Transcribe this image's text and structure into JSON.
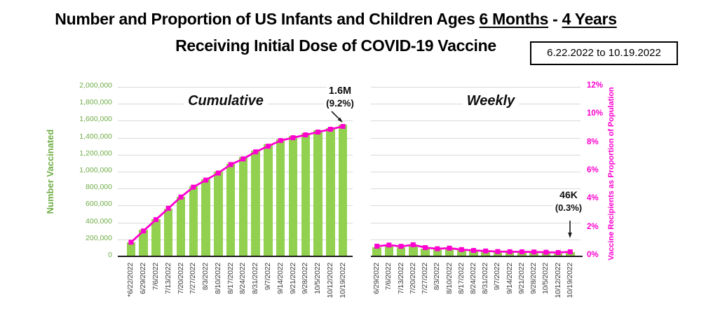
{
  "header": {
    "title_line1": {
      "prefix": "Number and Proportion of US Infants and Children Ages ",
      "underlined_1": "6 Months",
      "separator": " - ",
      "underlined_2": "4 Years"
    },
    "title_line2": "Receiving Initial Dose of COVID-19 Vaccine",
    "date_range": "6.22.2022 to 10.19.2022"
  },
  "colors": {
    "bar_green": "#92D050",
    "axis_green": "#70AD47",
    "magenta": "#FF00CE",
    "gridline": "#D9D9D9",
    "axis_line": "#1A1A1A",
    "label_gray": "#3F3F3F"
  },
  "left_axis": {
    "title": "Number Vaccinated",
    "min": 0,
    "max": 2000000,
    "step": 200000,
    "tick_labels": [
      "0",
      "200,000",
      "400,000",
      "600,000",
      "800,000",
      "1,000,000",
      "1,200,000",
      "1,400,000",
      "1,600,000",
      "1,800,000",
      "2,000,000"
    ]
  },
  "right_axis": {
    "title": "Vaccine Recipients as Proportion of Population",
    "min": 0,
    "max": 12,
    "step": 2,
    "tick_labels": [
      "0%",
      "2%",
      "4%",
      "6%",
      "8%",
      "10%",
      "12%"
    ]
  },
  "chart_data": [
    {
      "id": "cumulative",
      "type": "bar+line",
      "title": "Cumulative",
      "categories": [
        "*6/22/2022",
        "6/29/2022",
        "7/6/2022",
        "7/13/2022",
        "7/20/2022",
        "7/27/2022",
        "8/3/2022",
        "8/10/2022",
        "8/17/2022",
        "8/24/2022",
        "8/31/2022",
        "9/7/2022",
        "9/14/2022",
        "9/21/2022",
        "9/28/2022",
        "10/5/2022",
        "10/12/2022",
        "10/19/2022"
      ],
      "series": [
        {
          "name": "Number Vaccinated",
          "type": "bar",
          "axis": "left",
          "values": [
            165000,
            310000,
            435000,
            565000,
            700000,
            830000,
            905000,
            1000000,
            1090000,
            1170000,
            1245000,
            1320000,
            1380000,
            1420000,
            1455000,
            1485000,
            1515000,
            1550000
          ]
        },
        {
          "name": "Vaccine Recipients as Proportion of Population",
          "type": "line",
          "axis": "right",
          "values": [
            1.0,
            1.8,
            2.6,
            3.4,
            4.2,
            4.9,
            5.4,
            5.9,
            6.5,
            6.9,
            7.4,
            7.8,
            8.2,
            8.4,
            8.6,
            8.8,
            9.0,
            9.2
          ]
        }
      ],
      "annotation": {
        "line1": "1.6M",
        "line2": "(9.2%)"
      }
    },
    {
      "id": "weekly",
      "type": "bar+line",
      "title": "Weekly",
      "categories": [
        "6/29/2022",
        "7/6/2022",
        "7/13/2022",
        "7/20/2022",
        "7/27/2022",
        "8/3/2022",
        "8/10/2022",
        "8/17/2022",
        "8/24/2022",
        "8/31/2022",
        "9/7/2022",
        "9/14/2022",
        "9/21/2022",
        "9/28/2022",
        "10/5/2022",
        "10/12/2022",
        "10/19/2022"
      ],
      "series": [
        {
          "name": "Number Vaccinated",
          "type": "bar",
          "axis": "left",
          "values": [
            110000,
            125000,
            108000,
            128000,
            95000,
            82000,
            88000,
            72000,
            63000,
            56000,
            50000,
            48000,
            46000,
            44000,
            41000,
            37000,
            46000
          ]
        },
        {
          "name": "Vaccine Recipients as Proportion of Population",
          "type": "line",
          "axis": "right",
          "values": [
            0.72,
            0.8,
            0.71,
            0.82,
            0.62,
            0.54,
            0.58,
            0.48,
            0.42,
            0.38,
            0.34,
            0.33,
            0.32,
            0.31,
            0.29,
            0.27,
            0.32
          ]
        }
      ],
      "annotation": {
        "line1": "46K",
        "line2": "(0.3%)"
      }
    }
  ]
}
